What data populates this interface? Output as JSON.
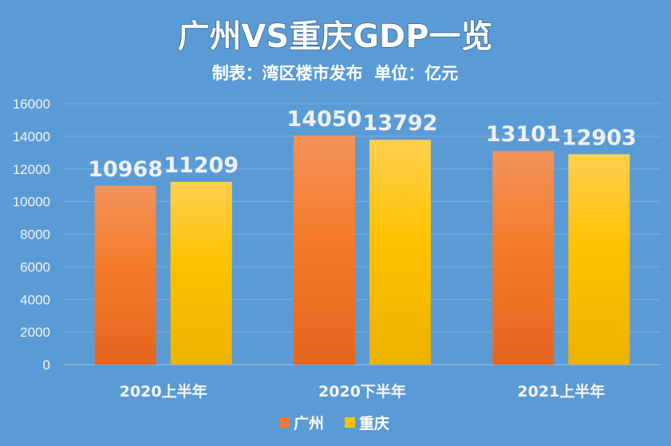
{
  "chart_data": {
    "type": "bar",
    "title": "广州VS重庆GDP一览",
    "subtitle": "制表：湾区楼市发布  单位：亿元",
    "categories": [
      "2020上半年",
      "2020下半年",
      "2021上半年"
    ],
    "series": [
      {
        "name": "广州",
        "values": [
          10968,
          14050,
          13101
        ],
        "color": "#f0792f"
      },
      {
        "name": "重庆",
        "values": [
          11209,
          13792,
          12903
        ],
        "color": "#ffc000"
      }
    ],
    "ylim": [
      0,
      16000
    ],
    "yticks": [
      0,
      2000,
      4000,
      6000,
      8000,
      10000,
      12000,
      14000,
      16000
    ],
    "grid": true,
    "legend": "bottom"
  }
}
